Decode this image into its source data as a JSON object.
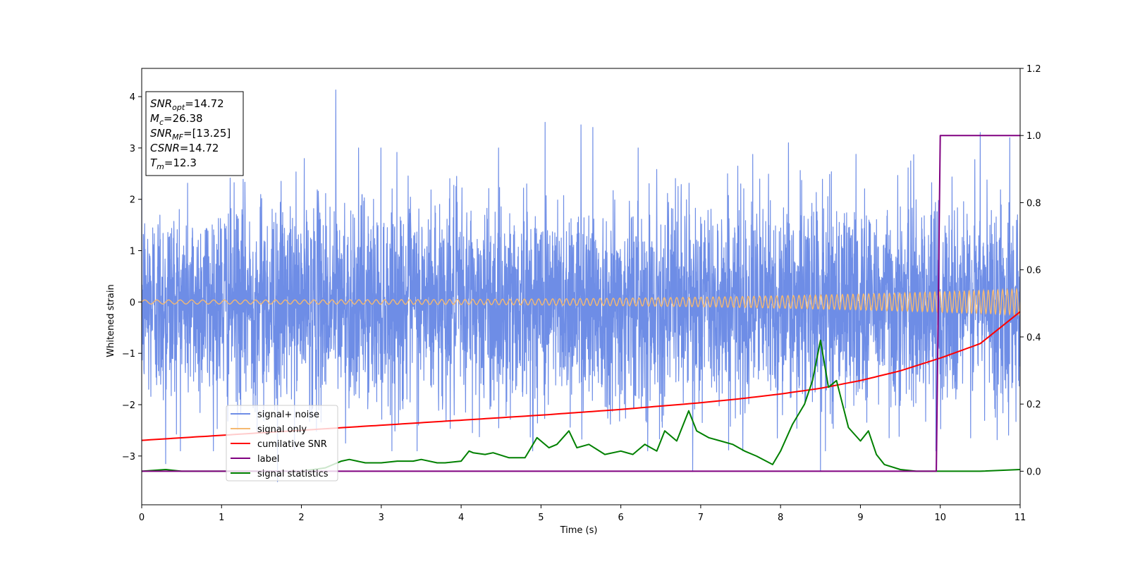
{
  "chart_data": {
    "type": "line",
    "title": "",
    "xlabel": "Time (s)",
    "ylabel": "Whitened strain",
    "ylabel_right": "",
    "xlim": [
      0,
      11
    ],
    "ylim": [
      -3.95,
      4.55
    ],
    "ylim_right": [
      -0.1,
      1.2
    ],
    "x_ticks": [
      0,
      1,
      2,
      3,
      4,
      5,
      6,
      7,
      8,
      9,
      10,
      11
    ],
    "y_ticks": [
      -3,
      -2,
      -1,
      0,
      1,
      2,
      3,
      4
    ],
    "y_ticks_right": [
      0.0,
      0.2,
      0.4,
      0.6,
      0.8,
      1.0,
      1.2
    ],
    "grid": false,
    "legend_position": "lower-left",
    "annotation": {
      "lines": [
        {
          "name": "SNR",
          "sub": "opt",
          "value": "=14.72"
        },
        {
          "name": "M",
          "sub": "c",
          "value": "=26.38"
        },
        {
          "name": "SNR",
          "sub": "MF",
          "value": "=[13.25]"
        },
        {
          "name": "CSNR",
          "sub": "",
          "value": "=14.72"
        },
        {
          "name": "T",
          "sub": "m",
          "value": "=12.3"
        }
      ]
    },
    "series": [
      {
        "name": "signal+ noise",
        "axis": "left",
        "color": "#6e8de6",
        "description": "whitened noise plus signal, approx. gaussian with std ~1, spanning about -3.5 to 4.1",
        "noise_std": 1.0,
        "peaks": [
          [
            2.43,
            4.13
          ],
          [
            5.05,
            3.5
          ],
          [
            5.5,
            3.45
          ],
          [
            5.65,
            3.4
          ],
          [
            8.1,
            3.1
          ],
          [
            10.5,
            3.3
          ],
          [
            10.87,
            3.2
          ],
          [
            1.7,
            -3.5
          ],
          [
            0.3,
            -3.15
          ],
          [
            6.9,
            -3.3
          ],
          [
            8.5,
            -3.3
          ],
          [
            9.95,
            -3.25
          ]
        ]
      },
      {
        "name": "signal only",
        "axis": "left",
        "color": "#f5b971",
        "description": "chirp waveform with growing amplitude and frequency",
        "amplitude_start": 0.04,
        "amplitude_end": 0.25,
        "cycles": 130
      },
      {
        "name": "cumilative SNR",
        "axis": "right",
        "color": "#ff0000",
        "x": [
          0,
          1,
          2,
          3,
          4,
          5,
          6,
          7,
          7.5,
          8,
          8.5,
          9,
          9.5,
          10,
          10.5,
          11
        ],
        "y": [
          0.092,
          0.107,
          0.122,
          0.137,
          0.152,
          0.167,
          0.184,
          0.204,
          0.216,
          0.23,
          0.247,
          0.27,
          0.299,
          0.337,
          0.38,
          0.475
        ]
      },
      {
        "name": "label",
        "axis": "right",
        "color": "#800080",
        "x": [
          0,
          9.95,
          10.0,
          11
        ],
        "y": [
          0.0,
          0.0,
          1.0,
          1.0
        ]
      },
      {
        "name": "signal statistics",
        "axis": "right",
        "color": "#008000",
        "x": [
          0,
          0.3,
          0.5,
          1.0,
          1.5,
          2.0,
          2.3,
          2.5,
          2.6,
          2.8,
          3.0,
          3.2,
          3.4,
          3.5,
          3.7,
          3.8,
          4.0,
          4.1,
          4.15,
          4.3,
          4.4,
          4.6,
          4.8,
          4.95,
          5.1,
          5.2,
          5.35,
          5.45,
          5.6,
          5.8,
          6.0,
          6.15,
          6.3,
          6.45,
          6.55,
          6.7,
          6.85,
          6.95,
          7.1,
          7.25,
          7.4,
          7.55,
          7.7,
          7.9,
          8.0,
          8.15,
          8.3,
          8.4,
          8.5,
          8.6,
          8.7,
          8.85,
          9.0,
          9.1,
          9.2,
          9.3,
          9.5,
          9.7,
          10.0,
          10.5,
          11.0
        ],
        "y": [
          0.0,
          0.005,
          0.0,
          0.0,
          0.0,
          0.0,
          0.01,
          0.03,
          0.035,
          0.025,
          0.025,
          0.03,
          0.03,
          0.035,
          0.025,
          0.025,
          0.03,
          0.06,
          0.055,
          0.05,
          0.055,
          0.04,
          0.04,
          0.1,
          0.07,
          0.08,
          0.12,
          0.07,
          0.08,
          0.05,
          0.06,
          0.05,
          0.08,
          0.06,
          0.12,
          0.09,
          0.18,
          0.12,
          0.1,
          0.09,
          0.08,
          0.06,
          0.045,
          0.02,
          0.06,
          0.14,
          0.2,
          0.27,
          0.39,
          0.25,
          0.27,
          0.13,
          0.09,
          0.12,
          0.05,
          0.02,
          0.005,
          0.0,
          0.0,
          0.0,
          0.005
        ]
      }
    ]
  }
}
